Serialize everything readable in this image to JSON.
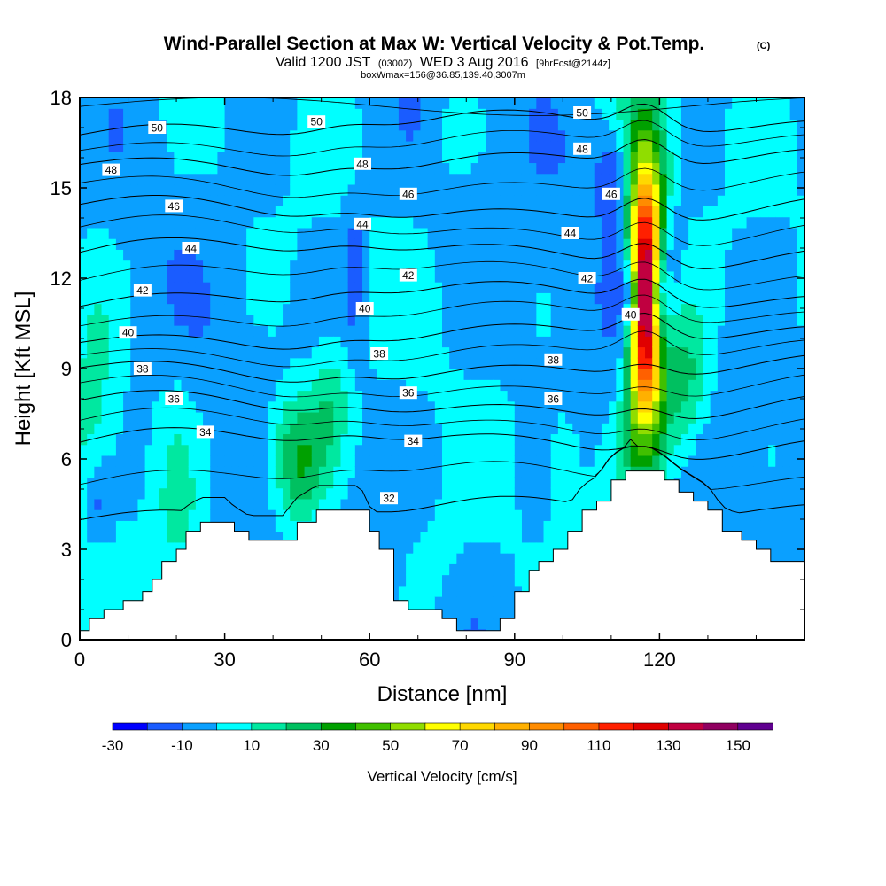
{
  "chart_data": {
    "type": "heatmap",
    "title": "Wind-Parallel Section at Max W: Vertical Velocity & Pot.Temp.",
    "title_mark": "(C)",
    "subtitle_parts": [
      "Valid 1200 JST",
      "(0300Z)",
      "WED 3 Aug 2016",
      "[9hrFcst@2144z]"
    ],
    "subtitle2": "boxWmax=156@36.85,139.40,3007m",
    "xlabel": "Distance [nm]",
    "ylabel": "Height [Kft MSL]",
    "xlim": [
      0,
      150
    ],
    "ylim": [
      0,
      18
    ],
    "x_ticks": [
      0,
      30,
      60,
      90,
      120
    ],
    "x_tick_labels": [
      "0",
      "30",
      "60",
      "90",
      "120"
    ],
    "y_ticks": [
      0,
      3,
      6,
      9,
      12,
      15,
      18
    ],
    "y_tick_labels": [
      "0",
      "3",
      "6",
      "9",
      "12",
      "15",
      "18"
    ],
    "colorbar": {
      "label": "Vertical Velocity [cm/s]",
      "boundaries": [
        -30,
        -20,
        -10,
        0,
        10,
        20,
        30,
        40,
        50,
        60,
        70,
        80,
        90,
        100,
        110,
        120,
        130,
        140,
        150,
        160
      ],
      "tick_labels": [
        "-30",
        "-10",
        "10",
        "30",
        "50",
        "70",
        "90",
        "110",
        "130",
        "150"
      ],
      "colors": [
        "#0000ff",
        "#1a5cff",
        "#0aa0ff",
        "#00ffff",
        "#00e8a0",
        "#00c060",
        "#00a000",
        "#40c000",
        "#90dd00",
        "#ffff00",
        "#ffd800",
        "#ffb000",
        "#ff8c00",
        "#ff6000",
        "#ff2000",
        "#e00000",
        "#c00040",
        "#900060",
        "#600090"
      ]
    },
    "theta_contours": [
      {
        "label": "32",
        "height": 4.2
      },
      {
        "label": "34",
        "height": 6.5
      },
      {
        "label": "36",
        "height": 7.7
      },
      {
        "label": "38",
        "height": 8.9
      },
      {
        "label": "40",
        "height": 10.0
      },
      {
        "label": "42",
        "height": 11.3
      },
      {
        "label": "44",
        "height": 12.8
      },
      {
        "label": "46",
        "height": 14.2
      },
      {
        "label": "48",
        "height": 15.8
      },
      {
        "label": "50",
        "height": 17.0
      }
    ],
    "contour_label_positions": [
      {
        "label": "50",
        "x": 16,
        "y": 17.0
      },
      {
        "label": "50",
        "x": 49,
        "y": 17.2
      },
      {
        "label": "50",
        "x": 104,
        "y": 17.5
      },
      {
        "label": "48",
        "x": 6.5,
        "y": 15.6
      },
      {
        "label": "48",
        "x": 58.5,
        "y": 15.8
      },
      {
        "label": "48",
        "x": 104,
        "y": 16.3
      },
      {
        "label": "46",
        "x": 19.5,
        "y": 14.4
      },
      {
        "label": "46",
        "x": 68,
        "y": 14.8
      },
      {
        "label": "46",
        "x": 110,
        "y": 14.8
      },
      {
        "label": "44",
        "x": 23,
        "y": 13.0
      },
      {
        "label": "44",
        "x": 58.5,
        "y": 13.8
      },
      {
        "label": "44",
        "x": 101.5,
        "y": 13.5
      },
      {
        "label": "42",
        "x": 13,
        "y": 11.6
      },
      {
        "label": "42",
        "x": 68,
        "y": 12.1
      },
      {
        "label": "42",
        "x": 105,
        "y": 12.0
      },
      {
        "label": "40",
        "x": 10,
        "y": 10.2
      },
      {
        "label": "40",
        "x": 59,
        "y": 11.0
      },
      {
        "label": "40",
        "x": 114,
        "y": 10.8
      },
      {
        "label": "38",
        "x": 13,
        "y": 9.0
      },
      {
        "label": "38",
        "x": 62,
        "y": 9.5
      },
      {
        "label": "38",
        "x": 98,
        "y": 9.3
      },
      {
        "label": "36",
        "x": 19.5,
        "y": 8.0
      },
      {
        "label": "36",
        "x": 68,
        "y": 8.2
      },
      {
        "label": "36",
        "x": 98,
        "y": 8.0
      },
      {
        "label": "34",
        "x": 26,
        "y": 6.9
      },
      {
        "label": "34",
        "x": 69,
        "y": 6.6
      },
      {
        "label": "32",
        "x": 64,
        "y": 4.7
      }
    ],
    "w_features": [
      {
        "x": 117,
        "y": 11.5,
        "w": 155,
        "note": "updraft core"
      },
      {
        "x": 111,
        "y": 15.5,
        "w": -18
      },
      {
        "x": 57,
        "y": 12.3,
        "w": -12
      },
      {
        "x": 45,
        "y": 6.0,
        "w": 30
      },
      {
        "x": 125,
        "y": 8.5,
        "w": 30
      },
      {
        "x": 4,
        "y": 4.5,
        "w": -15
      }
    ],
    "terrain_profile": [
      [
        0,
        0.3
      ],
      [
        2,
        0.7
      ],
      [
        5,
        1.0
      ],
      [
        9,
        1.3
      ],
      [
        13,
        1.6
      ],
      [
        15,
        2.0
      ],
      [
        17,
        2.6
      ],
      [
        20,
        3.0
      ],
      [
        22,
        3.6
      ],
      [
        25,
        3.9
      ],
      [
        30,
        3.9
      ],
      [
        32,
        3.6
      ],
      [
        35,
        3.3
      ],
      [
        42,
        3.3
      ],
      [
        45,
        3.9
      ],
      [
        49,
        4.3
      ],
      [
        58,
        4.3
      ],
      [
        60,
        3.6
      ],
      [
        62,
        3.0
      ],
      [
        65,
        1.3
      ],
      [
        68,
        1.0
      ],
      [
        75,
        0.7
      ],
      [
        78,
        0.3
      ],
      [
        84,
        0.3
      ],
      [
        87,
        0.7
      ],
      [
        90,
        1.6
      ],
      [
        93,
        2.3
      ],
      [
        95,
        2.6
      ],
      [
        98,
        3.0
      ],
      [
        101,
        3.6
      ],
      [
        104,
        4.3
      ],
      [
        107,
        4.6
      ],
      [
        110,
        5.3
      ],
      [
        113,
        5.6
      ],
      [
        118,
        5.6
      ],
      [
        121,
        5.3
      ],
      [
        124,
        4.9
      ],
      [
        127,
        4.6
      ],
      [
        130,
        4.3
      ],
      [
        133,
        3.6
      ],
      [
        137,
        3.3
      ],
      [
        140,
        3.0
      ],
      [
        143,
        2.6
      ],
      [
        146,
        2.6
      ],
      [
        150,
        2.6
      ]
    ]
  }
}
